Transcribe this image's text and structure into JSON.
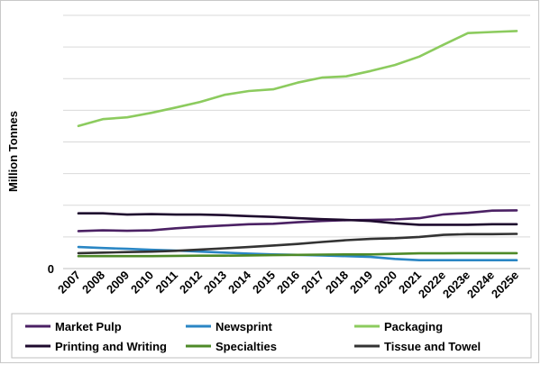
{
  "chart_data": {
    "type": "line",
    "title": "",
    "xlabel": "",
    "ylabel": "Million Tonnes",
    "y_tick_labels": [
      "0"
    ],
    "grid": true,
    "legend_position": "bottom",
    "categories": [
      "2007",
      "2008",
      "2009",
      "2010",
      "2011",
      "2012",
      "2013",
      "2014",
      "2015",
      "2016",
      "2017",
      "2018",
      "2019",
      "2020",
      "2021",
      "2022e",
      "2023e",
      "2024e",
      "2025e"
    ],
    "series": [
      {
        "name": "Market Pulp",
        "color": "#4B2164",
        "values": [
          14.8,
          15.1,
          14.9,
          15.1,
          15.9,
          16.5,
          17.0,
          17.5,
          17.7,
          18.3,
          18.8,
          19.1,
          19.2,
          19.4,
          19.9,
          21.4,
          22.0,
          22.9,
          23.0
        ]
      },
      {
        "name": "Newsprint",
        "color": "#2A86C4",
        "values": [
          8.5,
          8.1,
          7.8,
          7.4,
          7.1,
          6.7,
          6.3,
          5.9,
          5.6,
          5.4,
          5.2,
          4.9,
          4.6,
          3.8,
          3.3,
          3.3,
          3.3,
          3.3,
          3.3
        ]
      },
      {
        "name": "Packaging",
        "color": "#8CCB5E",
        "values": [
          56.3,
          59.0,
          59.7,
          61.5,
          63.6,
          65.8,
          68.6,
          70.1,
          70.8,
          73.4,
          75.4,
          75.9,
          78.0,
          80.4,
          83.7,
          88.4,
          93.0,
          93.4,
          93.8
        ]
      },
      {
        "name": "Printing and Writing",
        "color": "#1E0A2E",
        "values": [
          21.8,
          21.8,
          21.3,
          21.5,
          21.3,
          21.3,
          21.1,
          20.7,
          20.4,
          19.9,
          19.5,
          19.2,
          18.8,
          17.9,
          17.3,
          17.3,
          17.3,
          17.5,
          17.5
        ]
      },
      {
        "name": "Specialties",
        "color": "#4E8A28",
        "values": [
          4.9,
          4.9,
          4.9,
          4.9,
          5.0,
          5.1,
          5.1,
          5.2,
          5.3,
          5.4,
          5.5,
          5.6,
          5.6,
          5.8,
          6.0,
          6.0,
          6.1,
          6.1,
          6.1
        ]
      },
      {
        "name": "Tissue and Towel",
        "color": "#333333",
        "values": [
          6.1,
          6.3,
          6.5,
          6.7,
          7.0,
          7.5,
          8.0,
          8.5,
          9.1,
          9.7,
          10.5,
          11.2,
          11.7,
          12.0,
          12.5,
          13.3,
          13.6,
          13.6,
          13.7
        ]
      }
    ],
    "ylim": [
      0,
      100
    ]
  }
}
